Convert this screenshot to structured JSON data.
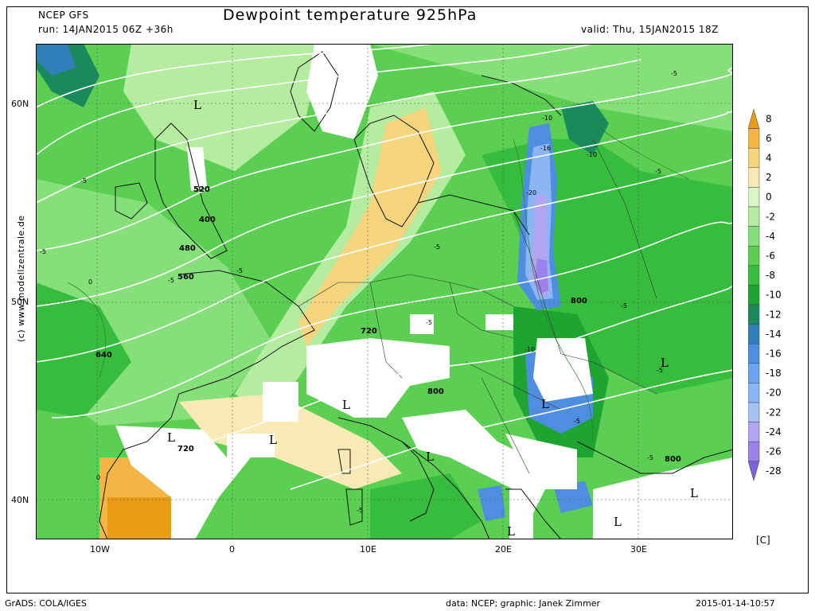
{
  "header": {
    "model": "NCEP GFS",
    "run": "run: 14JAN2015 06Z +36h",
    "title": "Dewpoint temperature 925hPa",
    "valid": "valid: Thu, 15JAN2015 18Z"
  },
  "side_credit": "(c) www.modellzentrale.de",
  "footer": {
    "left": "GrADS: COLA/IGES",
    "center": "data: NCEP; graphic: Janek Zimmer",
    "right": "2015-01-14-10:57"
  },
  "axes": {
    "lat_labels": [
      "60N",
      "50N",
      "40N"
    ],
    "lon_labels": [
      "10W",
      "0",
      "10E",
      "20E",
      "30E"
    ]
  },
  "colorbar": {
    "unit": "[C]",
    "labels": [
      "8",
      "6",
      "4",
      "2",
      "0",
      "-2",
      "-4",
      "-6",
      "-8",
      "-10",
      "-12",
      "-14",
      "-16",
      "-18",
      "-20",
      "-22",
      "-24",
      "-26",
      "-28"
    ],
    "colors": [
      "#e89b14",
      "#f3b645",
      "#f6d57e",
      "#f9eab5",
      "#d9f5c4",
      "#b4eca0",
      "#86e07a",
      "#5acf52",
      "#36bd3e",
      "#1ea531",
      "#1a8a5c",
      "#2f7fb9",
      "#4d8ee0",
      "#6aa3f0",
      "#8ab7f4",
      "#a6c2f2",
      "#b0a6ef",
      "#9a82ea",
      "#7a62d8"
    ]
  },
  "map_labels": {
    "geopotential": [
      "520",
      "400",
      "480",
      "560",
      "640",
      "720",
      "720",
      "800",
      "800",
      "800"
    ],
    "dewpoint": [
      "-5",
      "-5",
      "-5",
      "-5",
      "-5",
      "-5",
      "-5",
      "-5",
      "-5",
      "-5",
      "-5",
      "-5",
      "-5",
      "-10",
      "-10",
      "-10",
      "-16",
      "-20",
      "0",
      "0"
    ],
    "lows": [
      "L",
      "L",
      "L",
      "L",
      "L",
      "L",
      "L",
      "L",
      "L",
      "L"
    ]
  }
}
